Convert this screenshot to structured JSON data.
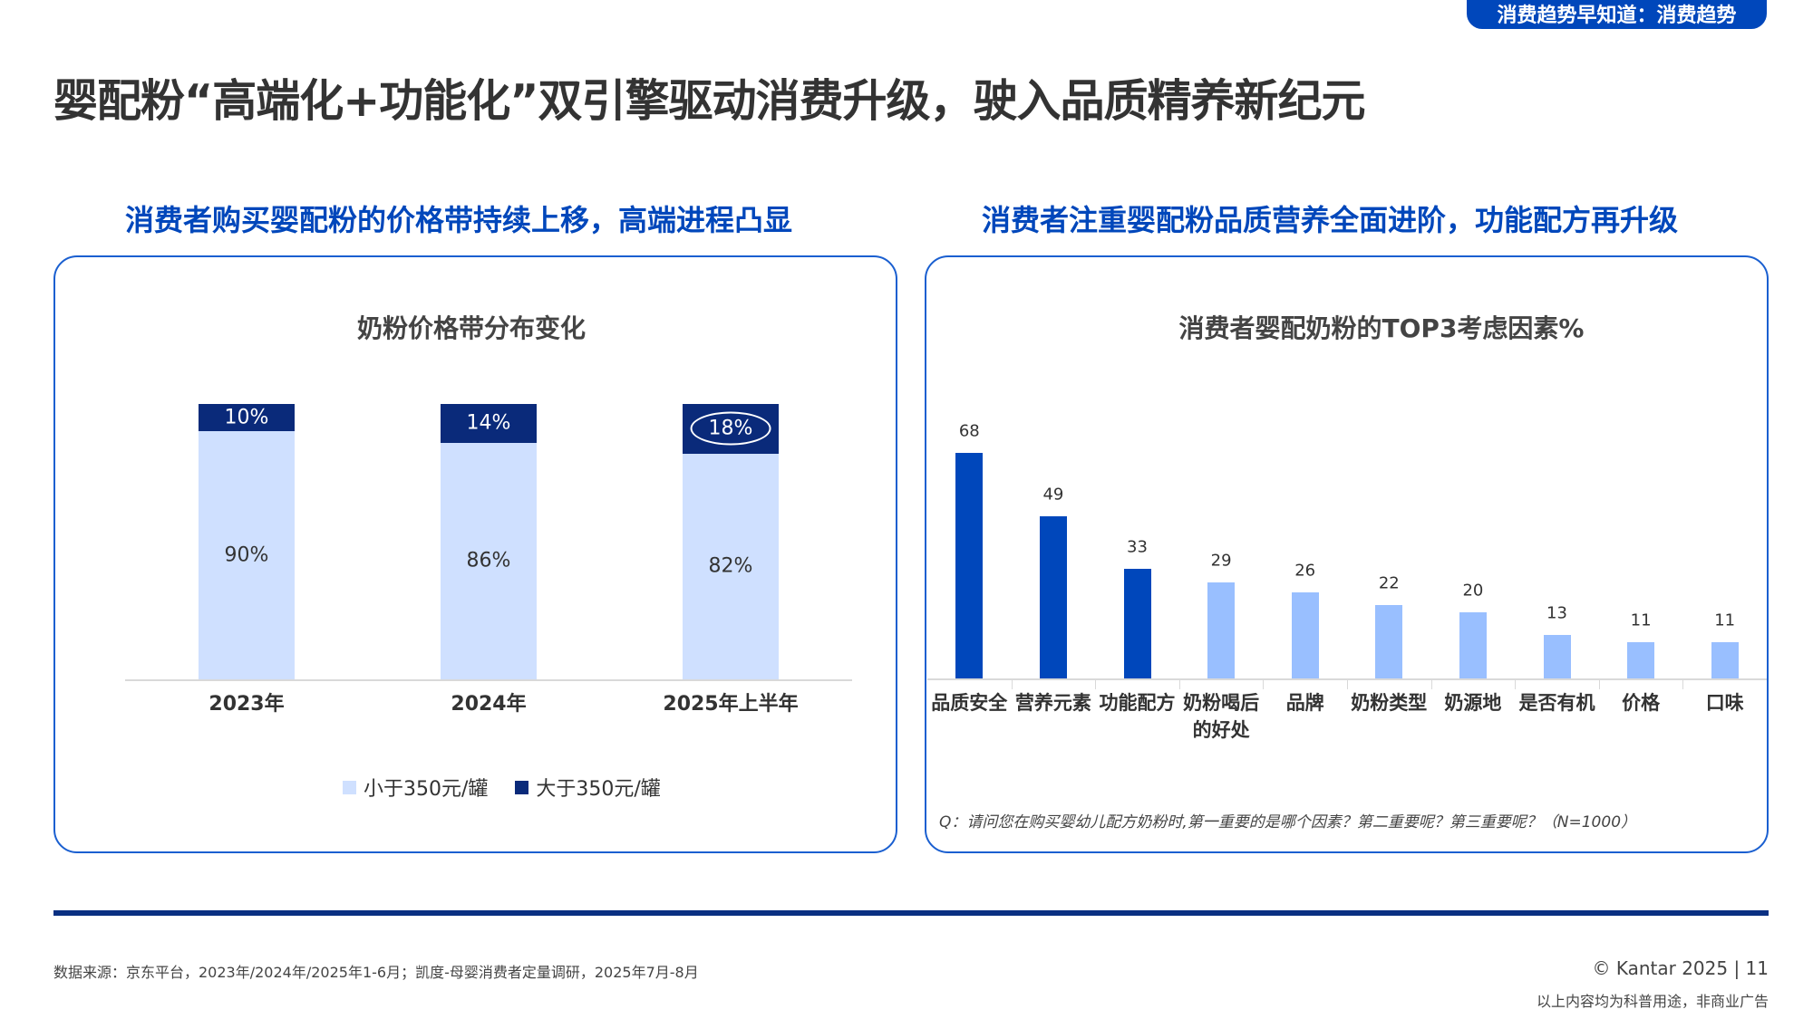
{
  "header": {
    "badge": "消费趋势早知道：消费趋势",
    "title": "婴配粉“高端化+功能化”双引擎驱动消费升级，驶入品质精养新纪元"
  },
  "left": {
    "subtitle": "消费者购买婴配粉的价格带持续上移，高端进程凸显"
  },
  "right": {
    "subtitle": "消费者注重婴配粉品质营养全面进阶，功能配方再升级",
    "note": "Q：请问您在购买婴幼儿配方奶粉时,第一重要的是哪个因素？第二重要呢？第三重要呢？（N=1000）"
  },
  "footer": {
    "source": "数据来源：京东平台，2023年/2024年/2025年1-6月；凯度-母婴消费者定量调研，2025年7月-8月",
    "copyright": "© Kantar 2025 | 11",
    "disclaimer": "以上内容均为科普用途，非商业广告"
  },
  "colors": {
    "navy": "#0a2a7a",
    "light": "#cfe0ff",
    "dark_bar": "#0047bb",
    "light_bar": "#99bfff"
  },
  "chart_data": [
    {
      "type": "bar",
      "stacked": true,
      "title": "奶粉价格带分布变化",
      "categories": [
        "2023年",
        "2024年",
        "2025年上半年"
      ],
      "series": [
        {
          "name": "小于350元/罐",
          "values": [
            90,
            86,
            82
          ],
          "labels": [
            "90%",
            "86%",
            "82%"
          ]
        },
        {
          "name": "大于350元/罐",
          "values": [
            10,
            14,
            18
          ],
          "labels": [
            "10%",
            "14%",
            "18%"
          ]
        }
      ],
      "ylim": [
        0,
        100
      ],
      "legend": "bottom",
      "highlight": "18%"
    },
    {
      "type": "bar",
      "title": "消费者婴配奶粉的TOP3考虑因素%",
      "categories": [
        "品质安全",
        "营养元素",
        "功能配方",
        "奶粉喝后的好处",
        "品牌",
        "奶粉类型",
        "奶源地",
        "是否有机",
        "价格",
        "口味"
      ],
      "values": [
        68,
        49,
        33,
        29,
        26,
        22,
        20,
        13,
        11,
        11
      ],
      "highlighted_top": 3,
      "ylim": [
        0,
        68
      ]
    }
  ]
}
